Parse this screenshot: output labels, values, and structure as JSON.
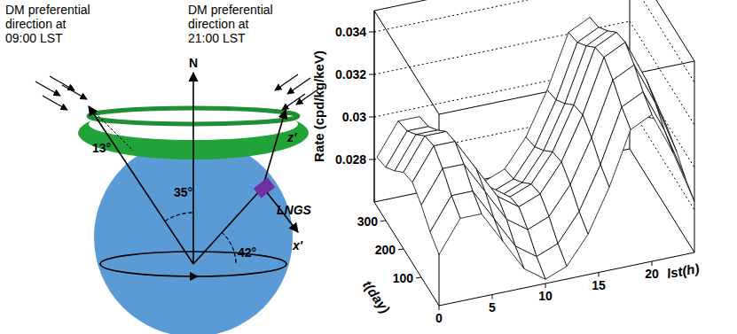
{
  "diagram": {
    "left_note": [
      "DM preferential",
      "direction at",
      "09:00 LST"
    ],
    "right_note": [
      "DM preferential",
      "direction at",
      "21:00 LST"
    ],
    "north": "N",
    "angles": [
      "13°",
      "35°",
      "42°"
    ],
    "site": "LNGS",
    "axes": [
      "z'",
      "x'"
    ]
  },
  "chart_data": {
    "type": "surface",
    "zlabel": "Rate (cpd/kg/keV)",
    "ylabel": "t(day)",
    "xlabel": "lst(h)",
    "x": [
      0,
      2,
      4,
      6,
      8,
      10,
      12,
      14,
      16,
      18,
      20,
      22,
      24
    ],
    "y": [
      0,
      50,
      100,
      150,
      200,
      250,
      300,
      350
    ],
    "z": [
      [
        0.0284,
        0.0299,
        0.0299,
        0.0284,
        0.0269,
        0.0262,
        0.0266,
        0.0279,
        0.0299,
        0.0324,
        0.0329,
        0.0309,
        0.0284
      ],
      [
        0.0288,
        0.0303,
        0.0303,
        0.0288,
        0.0273,
        0.0266,
        0.027,
        0.0283,
        0.0303,
        0.0328,
        0.0333,
        0.0313,
        0.0288
      ],
      [
        0.0294,
        0.0309,
        0.0309,
        0.0294,
        0.0279,
        0.0272,
        0.0276,
        0.0289,
        0.0309,
        0.0334,
        0.0339,
        0.0319,
        0.0294
      ],
      [
        0.0298,
        0.0313,
        0.0313,
        0.0298,
        0.0283,
        0.0276,
        0.028,
        0.0293,
        0.0313,
        0.0338,
        0.0343,
        0.0323,
        0.0298
      ],
      [
        0.0296,
        0.0311,
        0.0311,
        0.0296,
        0.0281,
        0.0274,
        0.0278,
        0.0291,
        0.0311,
        0.0336,
        0.0341,
        0.0321,
        0.0296
      ],
      [
        0.029,
        0.0305,
        0.0305,
        0.029,
        0.0275,
        0.0268,
        0.0272,
        0.0285,
        0.0305,
        0.033,
        0.0335,
        0.0315,
        0.029
      ],
      [
        0.0285,
        0.03,
        0.03,
        0.0285,
        0.027,
        0.0263,
        0.0267,
        0.028,
        0.03,
        0.0325,
        0.033,
        0.031,
        0.0285
      ],
      [
        0.0283,
        0.0298,
        0.0298,
        0.0283,
        0.0268,
        0.0261,
        0.0265,
        0.0278,
        0.0298,
        0.0323,
        0.0328,
        0.0308,
        0.0283
      ]
    ],
    "xlim": [
      0,
      24
    ],
    "ylim": [
      0,
      365
    ],
    "zlim": [
      0.026,
      0.035
    ],
    "xticks": [
      0,
      5,
      10,
      15,
      20
    ],
    "yticks": [
      100,
      200,
      300
    ],
    "zticks": [
      0.028,
      0.03,
      0.032,
      0.034
    ],
    "grid": true
  }
}
